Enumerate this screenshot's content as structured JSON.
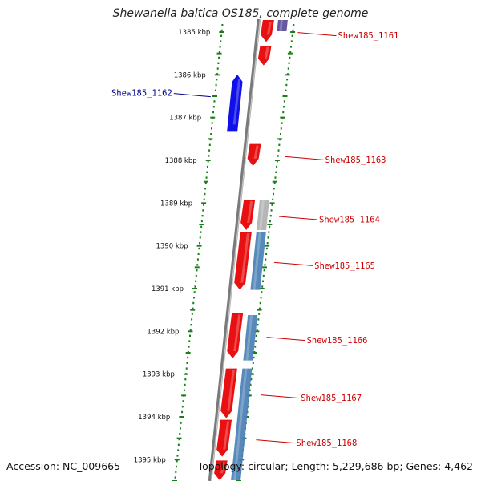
{
  "title": "Shewanella baltica OS185, complete genome",
  "footer": {
    "accession": "Accession: NC_009665",
    "topology": "Topology: circular; Length: 5,229,686 bp; Genes: 4,462"
  },
  "colors": {
    "forward_gene": "#1010e8",
    "reverse_gene": "#e81010",
    "cds": "#4a7fb5",
    "tick": "#1a7f1a",
    "backbone": "#7a7a7a",
    "label_reverse": "#cc0000",
    "label_forward": "#00008b"
  },
  "scale": {
    "start_kbp": 1384.7,
    "end_kbp": 1395.5,
    "ticks": [
      {
        "kbp": 1385,
        "label": "1385 kbp"
      },
      {
        "kbp": 1386,
        "label": "1386 kbp"
      },
      {
        "kbp": 1387,
        "label": "1387 kbp"
      },
      {
        "kbp": 1388,
        "label": "1388 kbp"
      },
      {
        "kbp": 1389,
        "label": "1389 kbp"
      },
      {
        "kbp": 1390,
        "label": "1390 kbp"
      },
      {
        "kbp": 1391,
        "label": "1391 kbp"
      },
      {
        "kbp": 1392,
        "label": "1392 kbp"
      },
      {
        "kbp": 1393,
        "label": "1393 kbp"
      },
      {
        "kbp": 1394,
        "label": "1394 kbp"
      },
      {
        "kbp": 1395,
        "label": "1395 kbp"
      }
    ]
  },
  "genes": [
    {
      "name": "Shew185_1161",
      "strand": "-",
      "start_kbp": 1384.7,
      "end_kbp": 1385.25
    },
    {
      "name": "",
      "strand": "-",
      "start_kbp": 1385.3,
      "end_kbp": 1385.8
    },
    {
      "name": "Shew185_1162",
      "strand": "+",
      "start_kbp": 1386.05,
      "end_kbp": 1387.35
    },
    {
      "name": "Shew185_1163",
      "strand": "-",
      "start_kbp": 1387.6,
      "end_kbp": 1388.15
    },
    {
      "name": "Shew185_1164",
      "strand": "-",
      "start_kbp": 1388.9,
      "end_kbp": 1389.65
    },
    {
      "name": "Shew185_1165",
      "strand": "-",
      "start_kbp": 1389.65,
      "end_kbp": 1391.05
    },
    {
      "name": "Shew185_1166",
      "strand": "-",
      "start_kbp": 1391.55,
      "end_kbp": 1392.65
    },
    {
      "name": "Shew185_1167",
      "strand": "-",
      "start_kbp": 1392.85,
      "end_kbp": 1394.05
    },
    {
      "name": "Shew185_1168",
      "strand": "-",
      "start_kbp": 1394.05,
      "end_kbp": 1394.95
    },
    {
      "name": "",
      "strand": "-",
      "start_kbp": 1395.0,
      "end_kbp": 1395.5
    }
  ],
  "cds_features": [
    {
      "start_kbp": 1384.7,
      "end_kbp": 1385.0,
      "color": "#5a4a9a"
    },
    {
      "start_kbp": 1388.9,
      "end_kbp": 1389.65,
      "color": "#b0b0b0"
    },
    {
      "start_kbp": 1389.65,
      "end_kbp": 1391.05,
      "color": "#4a7fb5"
    },
    {
      "start_kbp": 1391.6,
      "end_kbp": 1392.7,
      "color": "#4a7fb5"
    },
    {
      "start_kbp": 1392.85,
      "end_kbp": 1395.5,
      "color": "#4a7fb5"
    }
  ]
}
